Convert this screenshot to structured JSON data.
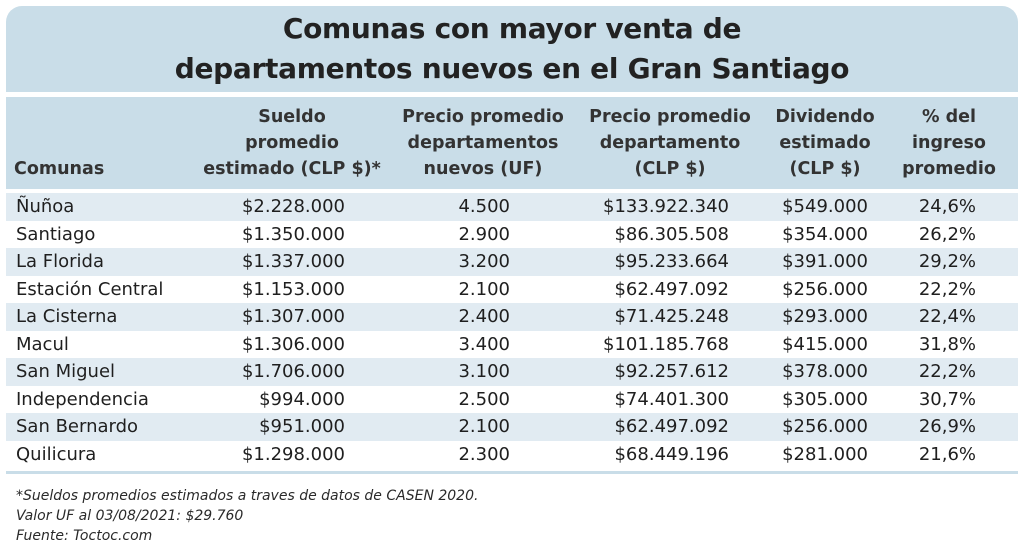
{
  "title": {
    "line1": "Comunas con mayor venta de",
    "line2": "departamentos nuevos en el Gran Santiago"
  },
  "headers": [
    {
      "lines": [
        "Comunas"
      ]
    },
    {
      "lines": [
        "Sueldo",
        "promedio",
        "estimado (CLP $)*"
      ]
    },
    {
      "lines": [
        "Precio promedio",
        "departamentos",
        "nuevos (UF)"
      ]
    },
    {
      "lines": [
        "Precio promedio",
        "departamento",
        "(CLP $)"
      ]
    },
    {
      "lines": [
        "Dividendo",
        "estimado",
        "(CLP $)"
      ]
    },
    {
      "lines": [
        "% del",
        "ingreso",
        "promedio"
      ]
    }
  ],
  "rows": [
    [
      "Ñuñoa",
      "$2.228.000",
      "4.500",
      "$133.922.340",
      "$549.000",
      "24,6%"
    ],
    [
      "Santiago",
      "$1.350.000",
      "2.900",
      "$86.305.508",
      "$354.000",
      "26,2%"
    ],
    [
      "La Florida",
      "$1.337.000",
      "3.200",
      "$95.233.664",
      "$391.000",
      "29,2%"
    ],
    [
      "Estación Central",
      "$1.153.000",
      "2.100",
      "$62.497.092",
      "$256.000",
      "22,2%"
    ],
    [
      "La Cisterna",
      "$1.307.000",
      "2.400",
      "$71.425.248",
      "$293.000",
      "22,4%"
    ],
    [
      "Macul",
      "$1.306.000",
      "3.400",
      "$101.185.768",
      "$415.000",
      "31,8%"
    ],
    [
      "San Miguel",
      "$1.706.000",
      "3.100",
      "$92.257.612",
      "$378.000",
      "22,2%"
    ],
    [
      "Independencia",
      "$994.000",
      "2.500",
      "$74.401.300",
      "$305.000",
      "30,7%"
    ],
    [
      "San Bernardo",
      "$951.000",
      "2.100",
      "$62.497.092",
      "$256.000",
      "26,9%"
    ],
    [
      "Quilicura",
      "$1.298.000",
      "2.300",
      "$68.449.196",
      "$281.000",
      "21,6%"
    ]
  ],
  "notes": [
    "*Sueldos promedios estimados a traves de datos de CASEN 2020.",
    "Valor UF al 03/08/2021: $29.760",
    "Fuente: Toctoc.com"
  ],
  "colors": {
    "band": "#c9dde8",
    "row_shade": "#e1ebf2",
    "text": "#1f1f1f"
  }
}
